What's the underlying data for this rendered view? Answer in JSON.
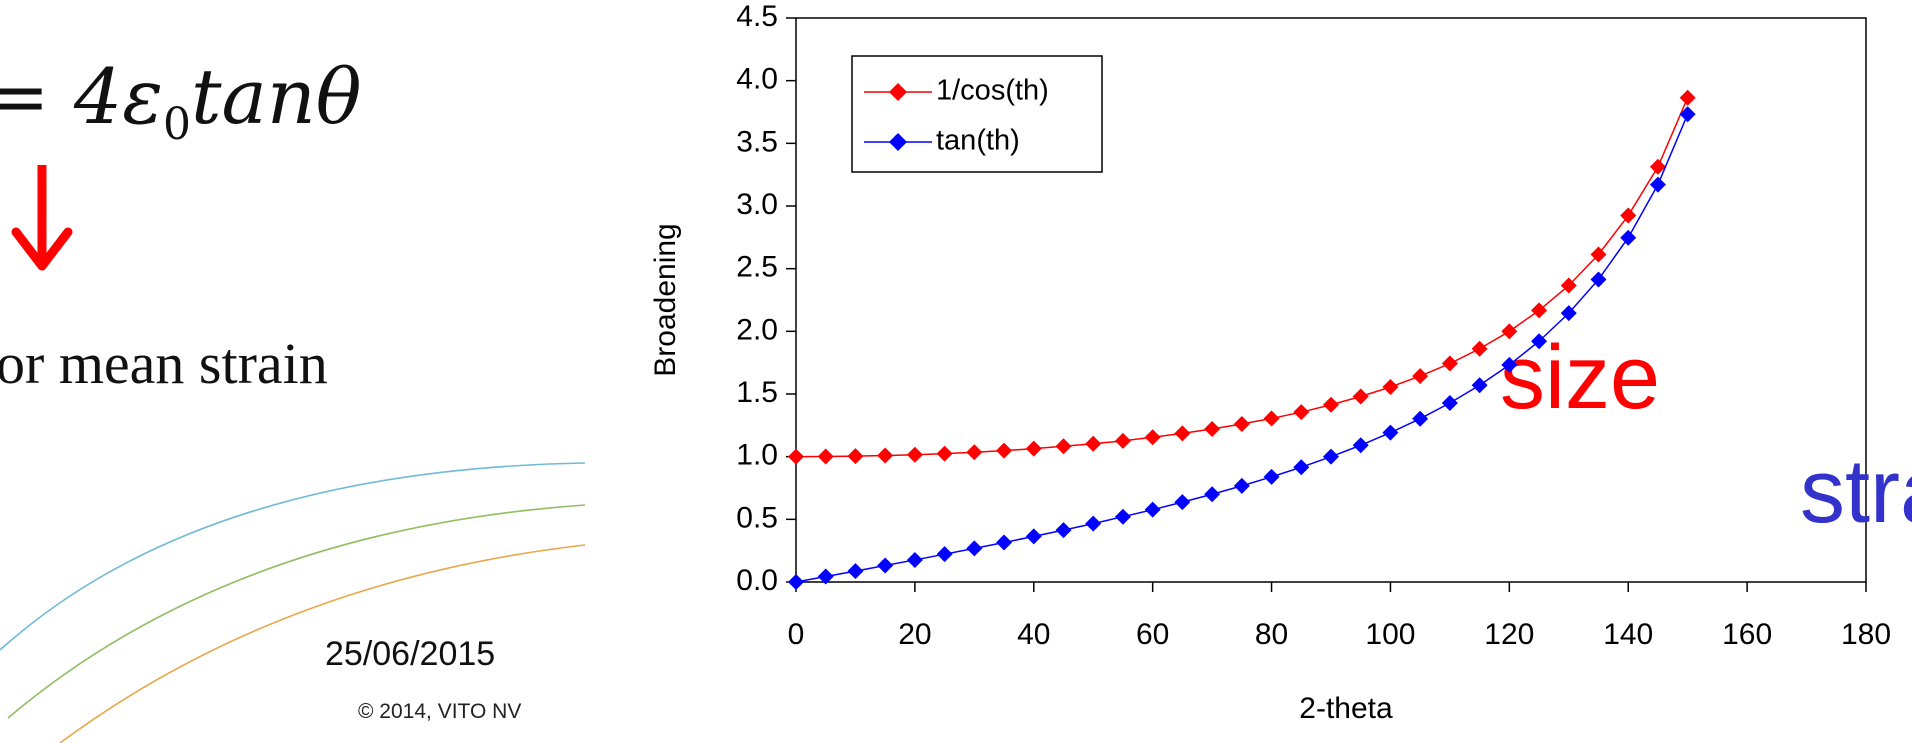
{
  "slide": {
    "formula": {
      "prefix": "= 4",
      "symbol": "ε",
      "subscript": "0",
      "suffix": "tanθ"
    },
    "caption": "or mean strain",
    "date": "25/06/2015",
    "copyright": "© 2014, VITO NV",
    "arrow_color": "#ff0000",
    "curve_colors": [
      "#6fbad6",
      "#8fbf5f",
      "#e8a64a"
    ]
  },
  "chart_data": {
    "type": "line",
    "title": "",
    "xlabel": "2-theta",
    "ylabel": "Broadening",
    "xlim": [
      0,
      180
    ],
    "ylim": [
      0,
      4.5
    ],
    "xticks": [
      "0",
      "20",
      "40",
      "60",
      "80",
      "100",
      "120",
      "140",
      "160",
      "180"
    ],
    "yticks": [
      "0.0",
      "0.5",
      "1.0",
      "1.5",
      "2.0",
      "2.5",
      "3.0",
      "3.5",
      "4.0",
      "4.5"
    ],
    "grid": false,
    "legend_position": "top-left",
    "x": [
      0,
      5,
      10,
      15,
      20,
      25,
      30,
      35,
      40,
      45,
      50,
      55,
      60,
      65,
      70,
      75,
      80,
      85,
      90,
      95,
      100,
      105,
      110,
      115,
      120,
      125,
      130,
      135,
      140,
      145,
      150
    ],
    "series": [
      {
        "name": "1/cos(th)",
        "color": "#ff0000",
        "values": [
          1.0,
          1.001,
          1.004,
          1.009,
          1.015,
          1.024,
          1.035,
          1.048,
          1.064,
          1.083,
          1.103,
          1.126,
          1.155,
          1.186,
          1.221,
          1.261,
          1.305,
          1.355,
          1.414,
          1.48,
          1.556,
          1.643,
          1.743,
          1.861,
          2.0,
          2.167,
          2.366,
          2.613,
          2.924,
          3.313,
          3.864
        ]
      },
      {
        "name": "tan(th)",
        "color": "#0000ff",
        "values": [
          0.0,
          0.044,
          0.087,
          0.132,
          0.176,
          0.222,
          0.268,
          0.315,
          0.364,
          0.414,
          0.466,
          0.521,
          0.577,
          0.637,
          0.7,
          0.767,
          0.839,
          0.916,
          1.0,
          1.091,
          1.192,
          1.303,
          1.428,
          1.57,
          1.732,
          1.921,
          2.145,
          2.414,
          2.747,
          3.171,
          3.732
        ]
      }
    ],
    "annotations": [
      {
        "text": "size",
        "color": "#ff0000"
      },
      {
        "text": "strain",
        "color": "#3333cc"
      }
    ]
  }
}
